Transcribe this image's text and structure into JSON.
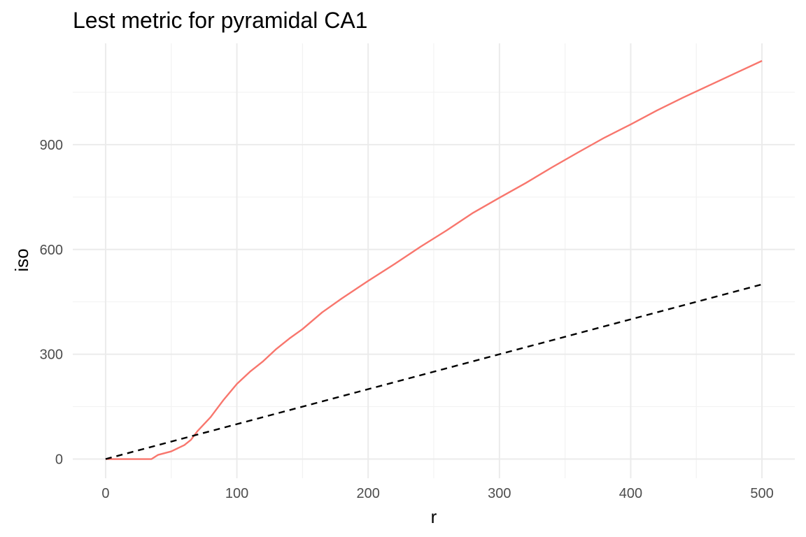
{
  "chart_data": {
    "type": "line",
    "title": "Lest metric for pyramidal CA1",
    "xlabel": "r",
    "ylabel": "iso",
    "xlim": [
      -25,
      525
    ],
    "ylim": [
      -55,
      1190
    ],
    "x_ticks": [
      0,
      100,
      200,
      300,
      400,
      500
    ],
    "y_ticks": [
      0,
      300,
      600,
      900
    ],
    "x_minor_ticks": [
      50,
      150,
      250,
      350,
      450
    ],
    "y_minor_ticks": [
      150,
      450,
      750,
      1050
    ],
    "grid": true,
    "legend": "none",
    "series": [
      {
        "color": "#F8766D",
        "line_style": "solid",
        "points": [
          [
            0,
            0
          ],
          [
            10,
            0
          ],
          [
            20,
            0
          ],
          [
            30,
            0
          ],
          [
            35,
            0
          ],
          [
            40,
            12
          ],
          [
            50,
            22
          ],
          [
            60,
            40
          ],
          [
            65,
            55
          ],
          [
            70,
            80
          ],
          [
            80,
            120
          ],
          [
            90,
            170
          ],
          [
            100,
            215
          ],
          [
            110,
            250
          ],
          [
            120,
            280
          ],
          [
            130,
            315
          ],
          [
            140,
            345
          ],
          [
            150,
            372
          ],
          [
            165,
            420
          ],
          [
            180,
            460
          ],
          [
            200,
            510
          ],
          [
            220,
            558
          ],
          [
            240,
            608
          ],
          [
            260,
            655
          ],
          [
            280,
            705
          ],
          [
            300,
            748
          ],
          [
            320,
            790
          ],
          [
            340,
            835
          ],
          [
            360,
            878
          ],
          [
            380,
            920
          ],
          [
            400,
            958
          ],
          [
            420,
            998
          ],
          [
            440,
            1035
          ],
          [
            460,
            1070
          ],
          [
            480,
            1105
          ],
          [
            500,
            1140
          ]
        ]
      },
      {
        "color": "#000000",
        "line_style": "dashed",
        "points": [
          [
            0,
            0
          ],
          [
            500,
            500
          ]
        ]
      }
    ]
  }
}
